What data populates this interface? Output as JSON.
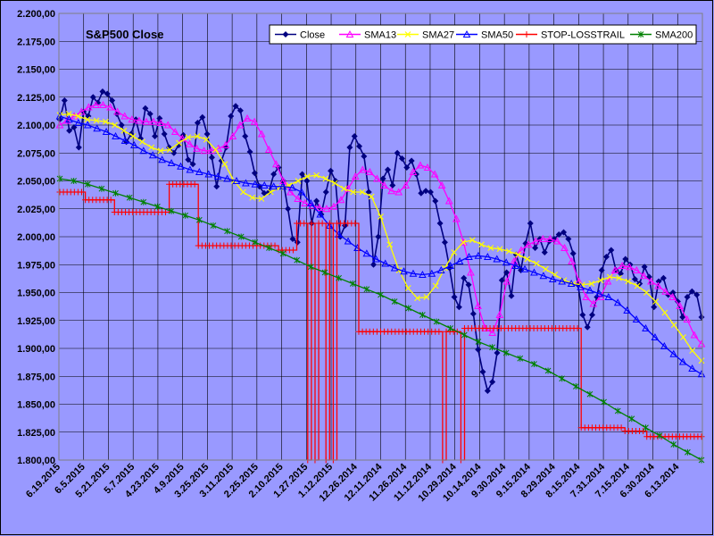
{
  "chart_data": {
    "type": "line",
    "title": "S&P500 Close",
    "xlabel": "",
    "ylabel": "",
    "ylim": [
      1800,
      2200
    ],
    "y_step": 25,
    "grid": true,
    "legend_position": "top-right",
    "x_direction": "newest-left",
    "x_tick_labels": [
      "6.19.2015",
      "6.5.2015",
      "5.21.2015",
      "5.7.2015",
      "4.23.2015",
      "4.9.2015",
      "3.25.2015",
      "3.11.2015",
      "2.25.2015",
      "2.10.2015",
      "1.27.2015",
      "1.12.2015",
      "12.26.2014",
      "12.11.2014",
      "11.26.2014",
      "11.12.2014",
      "10.29.2014",
      "10.14.2014",
      "9.30.2014",
      "9.15.2014",
      "8.29.2014",
      "8.15.2014",
      "7.31.2014",
      "7.15.2014",
      "6.30.2014",
      "6.13.2014"
    ],
    "y_tick_labels": [
      "1.800,00",
      "1.825,00",
      "1.850,00",
      "1.875,00",
      "1.900,00",
      "1.925,00",
      "1.950,00",
      "1.975,00",
      "2.000,00",
      "2.025,00",
      "2.050,00",
      "2.075,00",
      "2.100,00",
      "2.125,00",
      "2.150,00",
      "2.175,00",
      "2.200,00"
    ],
    "series": [
      {
        "name": "Close",
        "color": "#000080",
        "marker": "diamond",
        "values": [
          2105,
          2122,
          2095,
          2098,
          2080,
          2112,
          2108,
          2125,
          2120,
          2130,
          2128,
          2122,
          2110,
          2100,
          2085,
          2092,
          2105,
          2088,
          2115,
          2110,
          2090,
          2106,
          2092,
          2080,
          2075,
          2082,
          2091,
          2069,
          2065,
          2102,
          2107,
          2092,
          2071,
          2045,
          2068,
          2080,
          2108,
          2117,
          2113,
          2090,
          2076,
          2057,
          2045,
          2039,
          2040,
          2056,
          2062,
          2050,
          2025,
          1998,
          1995,
          2056,
          2050,
          2012,
          2032,
          2020,
          2040,
          2059,
          2050,
          2000,
          2010,
          2080,
          2090,
          2081,
          2072,
          2040,
          1975,
          2000,
          2052,
          2060,
          2046,
          2075,
          2070,
          2062,
          2068,
          2056,
          2039,
          2041,
          2040,
          2032,
          2012,
          1995,
          1972,
          1946,
          1937,
          1963,
          1957,
          1931,
          1899,
          1879,
          1862,
          1870,
          1896,
          1961,
          1968,
          1947,
          1984,
          1970,
          1994,
          2012,
          1990,
          1998,
          1986,
          1996,
          1998,
          2002,
          2004,
          1998,
          1985,
          1957,
          1930,
          1919,
          1930,
          1946,
          1970,
          1982,
          1988,
          1970,
          1967,
          1980,
          1975,
          1962,
          1958,
          1973,
          1964,
          1937,
          1960,
          1963,
          1948,
          1950,
          1942,
          1928,
          1946,
          1951,
          1948,
          1928
        ]
      },
      {
        "name": "SMA13",
        "color": "#ff00ff",
        "marker": "triangle",
        "values": [
          2100,
          2104,
          2108,
          2112,
          2116,
          2118,
          2118,
          2116,
          2112,
          2108,
          2105,
          2104,
          2103,
          2103,
          2102,
          2100,
          2094,
          2088,
          2083,
          2079,
          2077,
          2077,
          2079,
          2082,
          2090,
          2100,
          2106,
          2103,
          2092,
          2078,
          2065,
          2050,
          2040,
          2034,
          2030,
          2028,
          2026,
          2025,
          2027,
          2033,
          2043,
          2054,
          2060,
          2058,
          2052,
          2046,
          2041,
          2040,
          2046,
          2058,
          2064,
          2062,
          2056,
          2046,
          2032,
          2016,
          1995,
          1968,
          1938,
          1918,
          1914,
          1930,
          1960,
          1978,
          1988,
          1993,
          1996,
          1998,
          1998,
          1996,
          1990,
          1978,
          1960,
          1946,
          1940,
          1946,
          1960,
          1970,
          1974,
          1973,
          1970,
          1965,
          1960,
          1956,
          1951,
          1946,
          1938,
          1926,
          1912,
          1904
        ]
      },
      {
        "name": "SMA27",
        "color": "#ffff00",
        "marker": "cross",
        "values": [
          2109,
          2110,
          2108,
          2105,
          2104,
          2103,
          2100,
          2095,
          2090,
          2085,
          2080,
          2077,
          2078,
          2084,
          2089,
          2090,
          2087,
          2078,
          2065,
          2050,
          2040,
          2035,
          2034,
          2040,
          2044,
          2046,
          2050,
          2054,
          2055,
          2052,
          2048,
          2043,
          2040,
          2040,
          2036,
          2018,
          1993,
          1970,
          1954,
          1945,
          1946,
          1956,
          1972,
          1986,
          1995,
          1997,
          1993,
          1990,
          1989,
          1987,
          1984,
          1980,
          1976,
          1971,
          1966,
          1961,
          1958,
          1957,
          1958,
          1961,
          1964,
          1963,
          1960,
          1956,
          1950,
          1942,
          1932,
          1921,
          1910,
          1898,
          1889
        ]
      },
      {
        "name": "SMA50",
        "color": "#0000ff",
        "marker": "triangle",
        "values": [
          2108,
          2105,
          2102,
          2100,
          2097,
          2094,
          2090,
          2086,
          2082,
          2077,
          2073,
          2069,
          2066,
          2063,
          2060,
          2058,
          2056,
          2054,
          2052,
          2050,
          2048,
          2047,
          2046,
          2045,
          2045,
          2044,
          2040,
          2030,
          2020,
          2010,
          2002,
          1996,
          1990,
          1985,
          1980,
          1976,
          1972,
          1969,
          1967,
          1966,
          1967,
          1970,
          1974,
          1978,
          1982,
          1983,
          1982,
          1980,
          1977,
          1974,
          1971,
          1968,
          1965,
          1962,
          1960,
          1958,
          1955,
          1952,
          1949,
          1946,
          1941,
          1934,
          1926,
          1918,
          1910,
          1902,
          1895,
          1888,
          1882,
          1877
        ]
      },
      {
        "name": "STOP-LOSSTRAIL",
        "color": "#ff0000",
        "marker": "plus",
        "values": [
          2040,
          2040,
          2040,
          2040,
          2040,
          2040,
          2040,
          2033,
          2033,
          2033,
          2033,
          2033,
          2033,
          2033,
          2033,
          2022,
          2022,
          2022,
          2022,
          2022,
          2022,
          2022,
          2022,
          2022,
          2022,
          2022,
          2022,
          2022,
          2022,
          2022,
          2047,
          2047,
          2047,
          2047,
          2047,
          2047,
          2047,
          2047,
          1992,
          1992,
          1992,
          1992,
          1992,
          1992,
          1992,
          1992,
          1992,
          1992,
          1992,
          1992,
          1992,
          1992,
          1992,
          1992,
          1992,
          1992,
          1992,
          1992,
          1992,
          1992,
          1988,
          1988,
          1988,
          1988,
          1988,
          2012,
          2012,
          2012,
          1800,
          2012,
          1800,
          2012,
          2012,
          1800,
          2012,
          1800,
          2012,
          2012,
          2012,
          2012,
          2012,
          2012,
          1915,
          1915,
          1915,
          1915,
          1915,
          1915,
          1915,
          1915,
          1915,
          1915,
          1915,
          1915,
          1915,
          1915,
          1915,
          1915,
          1915,
          1915,
          1915,
          1915,
          1915,
          1915,
          1915,
          1800,
          1915,
          1915,
          1915,
          1915,
          1800,
          1918,
          1918,
          1918,
          1918,
          1918,
          1918,
          1918,
          1918,
          1918,
          1918,
          1918,
          1918,
          1918,
          1918,
          1918,
          1918,
          1918,
          1918,
          1918,
          1918,
          1918,
          1918,
          1918,
          1918,
          1918,
          1918,
          1918,
          1918,
          1918,
          1918,
          1918,
          1918,
          1829,
          1829,
          1829,
          1829,
          1829,
          1829,
          1829,
          1829,
          1829,
          1829,
          1829,
          1829,
          1826,
          1826,
          1826,
          1826,
          1826,
          1826,
          1821,
          1821,
          1821,
          1821,
          1821,
          1821,
          1821,
          1821,
          1821,
          1821,
          1821,
          1821,
          1821,
          1821,
          1821,
          1821
        ]
      },
      {
        "name": "SMA200",
        "color": "#008000",
        "marker": "star",
        "values": [
          2052,
          2050,
          2047,
          2043,
          2039,
          2035,
          2031,
          2027,
          2023,
          2019,
          2015,
          2010,
          2005,
          2000,
          1995,
          1990,
          1985,
          1979,
          1973,
          1968,
          1963,
          1958,
          1953,
          1948,
          1942,
          1936,
          1930,
          1924,
          1918,
          1912,
          1906,
          1901,
          1896,
          1891,
          1886,
          1880,
          1873,
          1866,
          1859,
          1852,
          1844,
          1837,
          1829,
          1822,
          1814,
          1807,
          1800
        ]
      }
    ]
  }
}
